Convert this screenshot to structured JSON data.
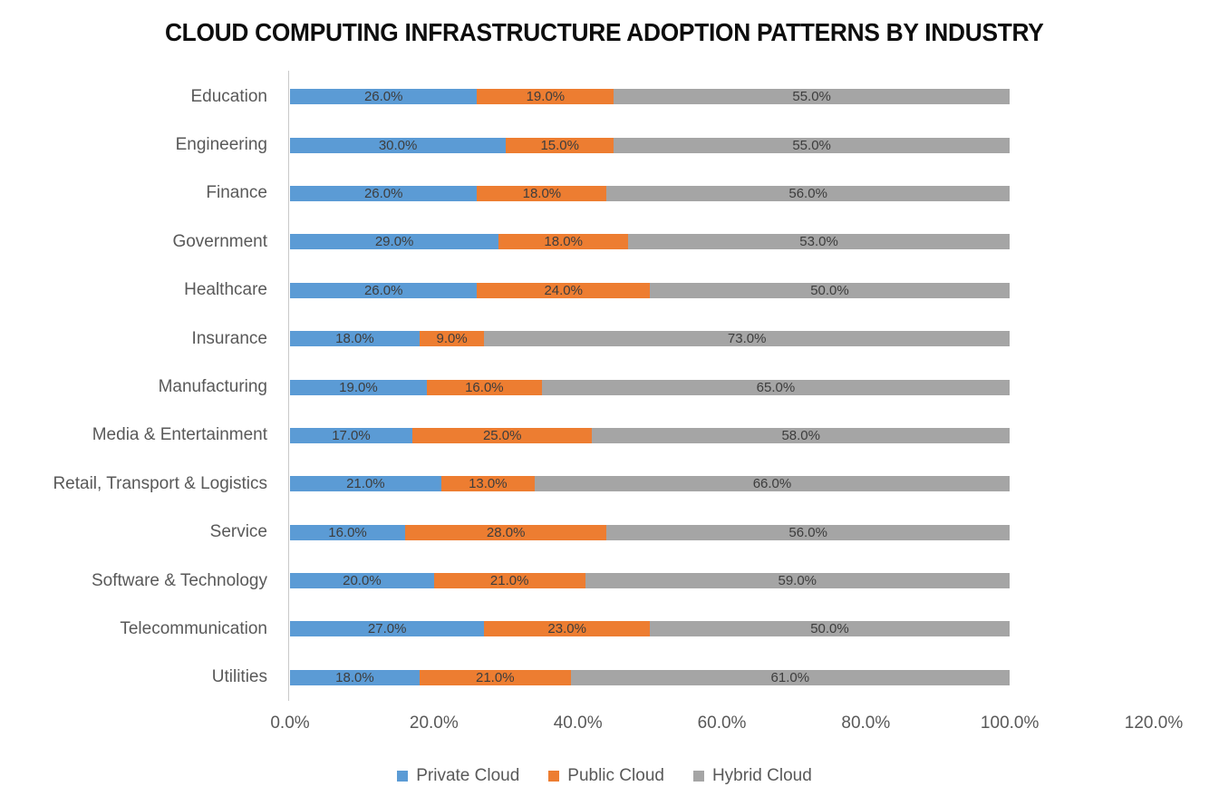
{
  "title": "CLOUD COMPUTING INFRASTRUCTURE ADOPTION PATTERNS BY INDUSTRY",
  "chart_data": {
    "type": "bar",
    "orientation": "horizontal",
    "stacked": true,
    "title": "CLOUD COMPUTING INFRASTRUCTURE ADOPTION PATTERNS BY INDUSTRY",
    "categories": [
      "Education",
      "Engineering",
      "Finance",
      "Government",
      "Healthcare",
      "Insurance",
      "Manufacturing",
      "Media & Entertainment",
      "Retail, Transport & Logistics",
      "Service",
      "Software & Technology",
      "Telecommunication",
      "Utilities"
    ],
    "series": [
      {
        "name": "Private Cloud",
        "color": "#5B9BD5",
        "values": [
          26.0,
          30.0,
          26.0,
          29.0,
          26.0,
          18.0,
          19.0,
          17.0,
          21.0,
          16.0,
          20.0,
          27.0,
          18.0
        ]
      },
      {
        "name": "Public Cloud",
        "color": "#ED7D31",
        "values": [
          19.0,
          15.0,
          18.0,
          18.0,
          24.0,
          9.0,
          16.0,
          25.0,
          13.0,
          28.0,
          21.0,
          23.0,
          21.0
        ]
      },
      {
        "name": "Hybrid Cloud",
        "color": "#A5A5A5",
        "values": [
          55.0,
          55.0,
          56.0,
          53.0,
          50.0,
          73.0,
          65.0,
          58.0,
          66.0,
          56.0,
          59.0,
          50.0,
          61.0
        ]
      }
    ],
    "x_tick_labels": [
      "0.0%",
      "20.0%",
      "40.0%",
      "60.0%",
      "80.0%",
      "100.0%",
      "120.0%"
    ],
    "x_tick_values": [
      0,
      20,
      40,
      60,
      80,
      100,
      120
    ],
    "xlim": [
      0,
      120
    ],
    "xlabel": "",
    "ylabel": "",
    "grid": false,
    "data_label_suffix": "%",
    "data_label_decimals": 1,
    "legend_position": "bottom",
    "legend": [
      "Private Cloud",
      "Public Cloud",
      "Hybrid Cloud"
    ]
  },
  "style": {
    "series_colors": [
      "#5B9BD5",
      "#ED7D31",
      "#A5A5A5"
    ],
    "title_color": "#0d0d0d",
    "category_label_color": "#595959",
    "data_label_color": "#3d3d3d",
    "tick_label_color": "#595959",
    "legend_text_color": "#595959",
    "axis_line_color": "#c9c9c9",
    "background_color": "#ffffff"
  }
}
